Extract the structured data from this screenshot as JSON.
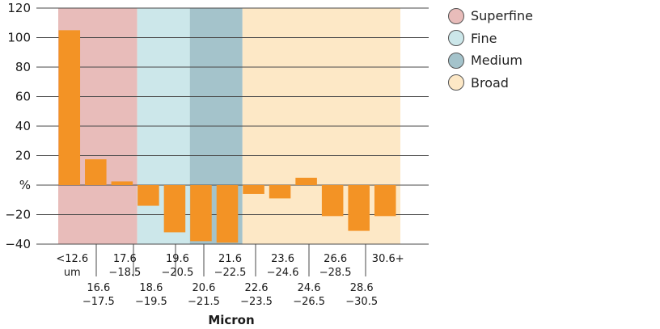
{
  "chart_data": {
    "type": "bar",
    "xlabel": "Micron",
    "ylabel": "%",
    "ylim": [
      -40,
      120
    ],
    "yticks": [
      "120",
      "100",
      "80",
      "60",
      "40",
      "20",
      "%",
      "−20",
      "−40"
    ],
    "categories": [
      [
        "<12.6",
        "um"
      ],
      [
        "16.6",
        "−17.5"
      ],
      [
        "17.6",
        "−18.5"
      ],
      [
        "18.6",
        "−19.5"
      ],
      [
        "19.6",
        "−20.5"
      ],
      [
        "20.6",
        "−21.5"
      ],
      [
        "21.6",
        "−22.5"
      ],
      [
        "22.6",
        "−23.5"
      ],
      [
        "23.6",
        "−24.6"
      ],
      [
        "24.6",
        "−26.5"
      ],
      [
        "26.6",
        "−28.5"
      ],
      [
        "28.6",
        "−30.5"
      ],
      [
        "30.6+"
      ]
    ],
    "values": [
      105,
      17.5,
      2.5,
      -14,
      -32,
      -38,
      -39,
      -6,
      -9,
      5,
      -21,
      -31,
      -21
    ],
    "bar_color": "#f39325",
    "bands": [
      {
        "name": "Superfine",
        "from": 0,
        "to": 3,
        "color": "#e8bcba"
      },
      {
        "name": "Fine",
        "from": 3,
        "to": 5,
        "color": "#cce7ea"
      },
      {
        "name": "Medium",
        "from": 5,
        "to": 7,
        "color": "#a4c3cb"
      },
      {
        "name": "Broad",
        "from": 7,
        "to": 13,
        "color": "#fde8c6"
      }
    ],
    "legend_position": "top-right",
    "grid": true
  }
}
